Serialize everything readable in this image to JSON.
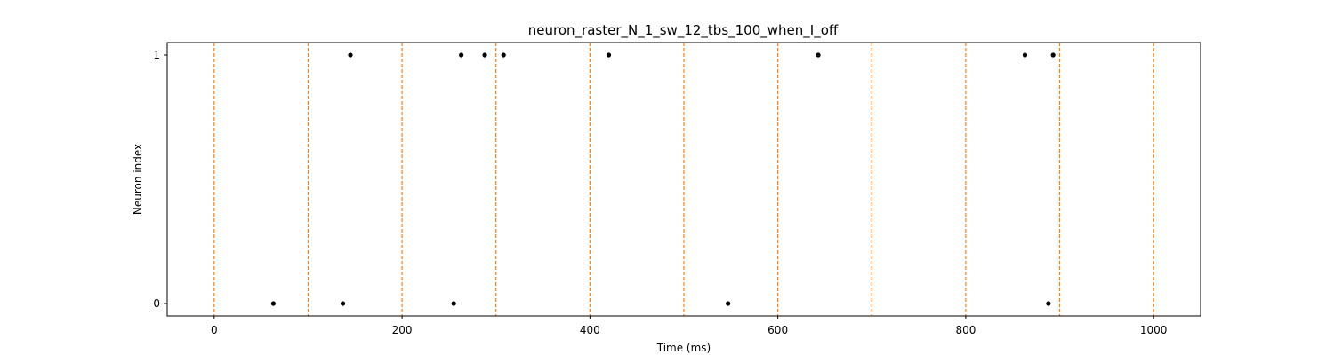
{
  "chart_data": {
    "type": "scatter",
    "title": "neuron_raster_N_1_sw_12_tbs_100_when_I_off",
    "xlabel": "Time (ms)",
    "ylabel": "Neuron index",
    "xlim": [
      -50,
      1050
    ],
    "ylim": [
      -0.05,
      1.05
    ],
    "xticks": [
      0,
      200,
      400,
      600,
      800,
      1000
    ],
    "yticks": [
      0,
      1
    ],
    "grid": false,
    "legend": "none",
    "series": [
      {
        "color": "#000000",
        "points": [
          {
            "x": 63,
            "y": 0
          },
          {
            "x": 137,
            "y": 0
          },
          {
            "x": 255,
            "y": 0
          },
          {
            "x": 547,
            "y": 0
          },
          {
            "x": 888,
            "y": 0
          },
          {
            "x": 145,
            "y": 1
          },
          {
            "x": 263,
            "y": 1
          },
          {
            "x": 288,
            "y": 1
          },
          {
            "x": 308,
            "y": 1
          },
          {
            "x": 420,
            "y": 1
          },
          {
            "x": 643,
            "y": 1
          },
          {
            "x": 863,
            "y": 1
          },
          {
            "x": 893,
            "y": 1
          }
        ]
      }
    ],
    "vlines": {
      "color": "#ff7f0e",
      "style": "dashed",
      "x": [
        0,
        100,
        200,
        300,
        400,
        500,
        600,
        700,
        800,
        900,
        1000
      ]
    }
  }
}
